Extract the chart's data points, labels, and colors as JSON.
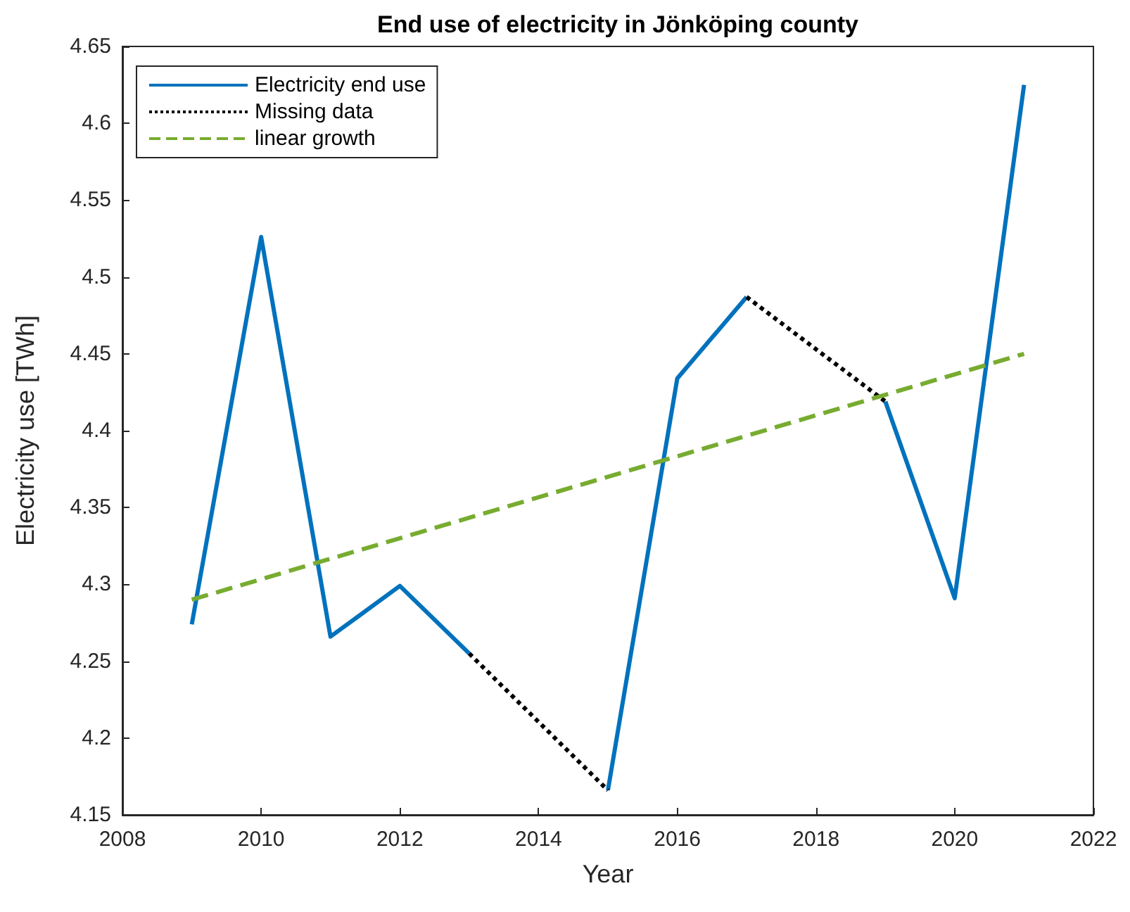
{
  "chart_data": {
    "type": "line",
    "title": "End use of electricity in Jönköping county",
    "xlabel": "Year",
    "ylabel": "Electricity use [TWh]",
    "x": [
      2009,
      2010,
      2011,
      2012,
      2013,
      2014,
      2015,
      2016,
      2017,
      2018,
      2019,
      2020,
      2021
    ],
    "series": [
      {
        "name": "Electricity end use",
        "color": "#0072bd",
        "line_style": "solid",
        "values": [
          4.274,
          4.526,
          4.266,
          4.299,
          4.255,
          null,
          4.166,
          4.434,
          4.487,
          null,
          4.419,
          4.291,
          4.625
        ]
      },
      {
        "name": "Missing data",
        "color": "#000000",
        "line_style": "dotted",
        "x": [
          2013,
          2015,
          2016,
          2017,
          2019
        ],
        "values": [
          4.255,
          4.166,
          null,
          4.487,
          4.419
        ]
      },
      {
        "name": "linear growth",
        "color": "#77ac30",
        "line_style": "dashed",
        "x": [
          2009,
          2021
        ],
        "values": [
          4.29,
          4.45
        ]
      }
    ],
    "xlim": [
      2008,
      2022
    ],
    "xticks": [
      2008,
      2010,
      2012,
      2014,
      2016,
      2018,
      2020,
      2022
    ],
    "ylim": [
      4.15,
      4.65
    ],
    "yticks": [
      4.15,
      4.2,
      4.25,
      4.3,
      4.35,
      4.4,
      4.45,
      4.5,
      4.55,
      4.6,
      4.65
    ],
    "grid": false,
    "legend": "top left",
    "marker": "none"
  }
}
